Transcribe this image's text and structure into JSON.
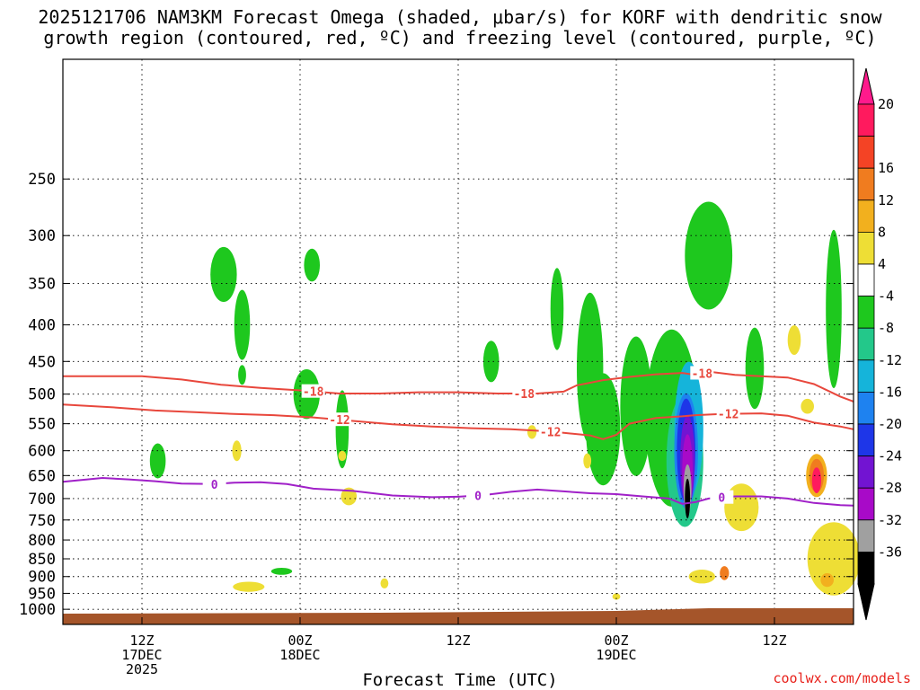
{
  "header": {
    "title_line1": "2025121706 NAM3KM Forecast Omega (shaded, μbar/s) for KORF with dendritic snow",
    "title_line2": "growth region (contoured, red, ºC) and freezing level (contoured, purple, ºC)"
  },
  "footer": {
    "url": "coolwx.com/models"
  },
  "chart_data": {
    "type": "heatmap",
    "title": "2025121706 NAM3KM Forecast Omega (shaded, μbar/s) for KORF with dendritic snow growth region (contoured, red, ºC) and freezing level (contoured, purple, ºC)",
    "xlabel": "Forecast Time (UTC)",
    "ylabel": "",
    "xlim_hours": [
      -6,
      54
    ],
    "ylim_hpa": [
      1050,
      170
    ],
    "y_ticks": [
      250,
      300,
      350,
      400,
      450,
      500,
      550,
      600,
      650,
      700,
      750,
      800,
      850,
      900,
      950,
      1000
    ],
    "x_ticks": [
      {
        "hour": 0,
        "lines": [
          "12Z",
          "17DEC",
          "2025"
        ]
      },
      {
        "hour": 12,
        "lines": [
          "00Z",
          "18DEC"
        ]
      },
      {
        "hour": 24,
        "lines": [
          "12Z"
        ]
      },
      {
        "hour": 36,
        "lines": [
          "00Z",
          "19DEC"
        ]
      },
      {
        "hour": 48,
        "lines": [
          "12Z"
        ]
      }
    ],
    "colorbar": {
      "labels": [
        "20",
        "16",
        "12",
        "8",
        "4",
        "-4",
        "-8",
        "-12",
        "-16",
        "-20",
        "-24",
        "-28",
        "-32",
        "-36"
      ],
      "colors": [
        "#ff1a5e",
        "#f44325",
        "#f07c1f",
        "#f2b01e",
        "#eede35",
        "#ffffff",
        "#1ec81e",
        "#23c88a",
        "#15b4da",
        "#1e82f0",
        "#1e36e8",
        "#7214d2",
        "#a80ac8",
        "#a0a0a0",
        "#000000"
      ],
      "top_arrow_color": "#ff1a8c",
      "bottom_arrow_color": "#000000"
    },
    "contours": [
      {
        "name": "-18",
        "color": "#e8473c",
        "labels_at_hours": [
          13,
          29,
          42.5
        ],
        "points": [
          [
            -6,
            472
          ],
          [
            0,
            472
          ],
          [
            3,
            477
          ],
          [
            6,
            485
          ],
          [
            9,
            490
          ],
          [
            12,
            494
          ],
          [
            15,
            499
          ],
          [
            18,
            499
          ],
          [
            21,
            497
          ],
          [
            24,
            497
          ],
          [
            27,
            499
          ],
          [
            30,
            499
          ],
          [
            32,
            496
          ],
          [
            33,
            486
          ],
          [
            35,
            478
          ],
          [
            37,
            473
          ],
          [
            39,
            469
          ],
          [
            41,
            467
          ],
          [
            42,
            470
          ],
          [
            43,
            465
          ],
          [
            45,
            470
          ],
          [
            47,
            472
          ],
          [
            49,
            474
          ],
          [
            51,
            484
          ],
          [
            53,
            504
          ],
          [
            54,
            512
          ]
        ]
      },
      {
        "name": "-12",
        "color": "#e8473c",
        "labels_at_hours": [
          15,
          31,
          44.5
        ],
        "points": [
          [
            -6,
            517
          ],
          [
            -2,
            522
          ],
          [
            1,
            527
          ],
          [
            4,
            530
          ],
          [
            7,
            533
          ],
          [
            10,
            535
          ],
          [
            13,
            539
          ],
          [
            16,
            545
          ],
          [
            19,
            551
          ],
          [
            22,
            555
          ],
          [
            25,
            558
          ],
          [
            28,
            560
          ],
          [
            31,
            564
          ],
          [
            34,
            571
          ],
          [
            35,
            578
          ],
          [
            36,
            570
          ],
          [
            37,
            550
          ],
          [
            39,
            540
          ],
          [
            41,
            537
          ],
          [
            42,
            535
          ],
          [
            44,
            533
          ],
          [
            47,
            532
          ],
          [
            49,
            536
          ],
          [
            51,
            548
          ],
          [
            53,
            555
          ],
          [
            54,
            560
          ]
        ]
      },
      {
        "name": "0",
        "color": "#a020c8",
        "labels_at_hours": [
          5.5,
          25.5,
          44
        ],
        "points": [
          [
            -6,
            663
          ],
          [
            -3,
            655
          ],
          [
            -1,
            658
          ],
          [
            1,
            662
          ],
          [
            3,
            667
          ],
          [
            5.5,
            668
          ],
          [
            7,
            665
          ],
          [
            9,
            664
          ],
          [
            11,
            668
          ],
          [
            13,
            678
          ],
          [
            16,
            683
          ],
          [
            19,
            693
          ],
          [
            22,
            697
          ],
          [
            24,
            696
          ],
          [
            26,
            692
          ],
          [
            28,
            685
          ],
          [
            30,
            680
          ],
          [
            32,
            684
          ],
          [
            34,
            688
          ],
          [
            36,
            690
          ],
          [
            38,
            695
          ],
          [
            40,
            700
          ],
          [
            41,
            712
          ],
          [
            42,
            708
          ],
          [
            43,
            700
          ],
          [
            45,
            695
          ],
          [
            47,
            695
          ],
          [
            49,
            700
          ],
          [
            51,
            710
          ],
          [
            53,
            715
          ],
          [
            54,
            716
          ]
        ]
      }
    ]
  }
}
